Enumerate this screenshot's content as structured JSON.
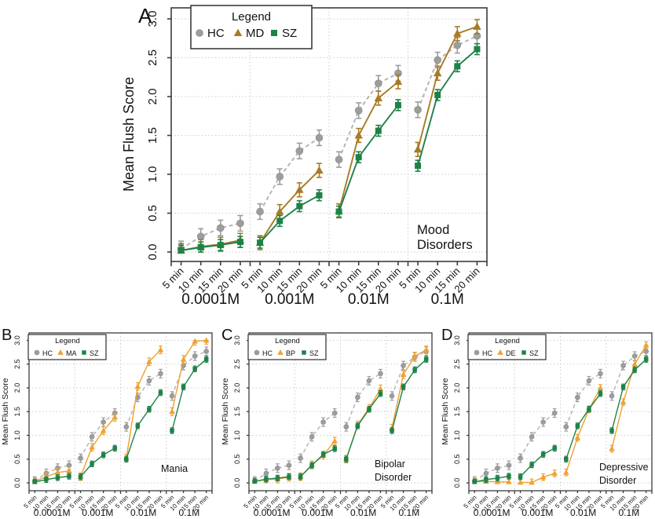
{
  "figure": {
    "y_axis_label": "Mean Flush Score",
    "legend_title": "Legend",
    "time_labels": [
      "5 min",
      "10 min",
      "15 min",
      "20 min"
    ],
    "concentrations": [
      "0.0001M",
      "0.001M",
      "0.01M",
      "0.1M"
    ],
    "y_tick_labels": [
      "0.0",
      "0.5",
      "1.0",
      "1.5",
      "2.0",
      "2.5",
      "3.0"
    ]
  },
  "colors": {
    "hc_gray": "#9d9d9d",
    "hc_line": "#b2b2b2",
    "mood_brown": "#a87b25",
    "orange": "#efa131",
    "sz_green": "#1e8248",
    "grid": "#cccccc",
    "box": "#3c3c3c",
    "text": "#111111"
  },
  "chart_data": [
    {
      "panel": "A",
      "type": "line",
      "ylabel": "Mean Flush Score",
      "ylim": [
        0,
        3
      ],
      "yticks": [
        0.0,
        0.5,
        1.0,
        1.5,
        2.0,
        2.5,
        3.0
      ],
      "grid": "dotted",
      "legend_title": "Legend",
      "legend_position": "top-left",
      "x_groups": [
        "0.0001M",
        "0.001M",
        "0.01M",
        "0.1M"
      ],
      "x_within_group": [
        "5 min",
        "10 min",
        "15 min",
        "20 min"
      ],
      "annotation": {
        "lines": [
          "Mood",
          "Disorders"
        ],
        "color": "#a87b25"
      },
      "series": [
        {
          "name": "HC",
          "marker": "circle",
          "color": "#9d9d9d",
          "line_color": "#b2b2b2",
          "dashed": true,
          "err": 0.1,
          "values": [
            0.04,
            0.2,
            0.31,
            0.37,
            0.52,
            0.97,
            1.3,
            1.47,
            1.19,
            1.82,
            2.17,
            2.3,
            1.83,
            2.47,
            2.66,
            2.78
          ]
        },
        {
          "name": "MD",
          "marker": "triangle",
          "color": "#a87b25",
          "line_color": "#a87b25",
          "dashed": false,
          "err": 0.09,
          "values": [
            0.02,
            0.07,
            0.1,
            0.15,
            0.12,
            0.52,
            0.8,
            1.05,
            0.53,
            1.5,
            1.98,
            2.19,
            1.32,
            2.3,
            2.81,
            2.9
          ]
        },
        {
          "name": "SZ",
          "marker": "square",
          "color": "#1e8248",
          "line_color": "#1e8248",
          "dashed": false,
          "err": 0.07,
          "values": [
            0.02,
            0.06,
            0.09,
            0.13,
            0.12,
            0.4,
            0.59,
            0.73,
            0.52,
            1.22,
            1.56,
            1.89,
            1.11,
            2.02,
            2.39,
            2.61
          ]
        }
      ]
    },
    {
      "panel": "B",
      "type": "line",
      "ylabel": "Mean Flush Score",
      "ylim": [
        0,
        3
      ],
      "yticks": [
        0.0,
        0.5,
        1.0,
        1.5,
        2.0,
        2.5,
        3.0
      ],
      "grid": "dotted",
      "legend_title": "Legend",
      "legend_position": "top-left",
      "x_groups": [
        "0.0001M",
        "0.001M",
        "0.01M",
        "0.1M"
      ],
      "x_within_group": [
        "5 min",
        "10 min",
        "15 min",
        "20 min"
      ],
      "annotation": {
        "lines": [
          "Mania"
        ],
        "color": "#efa131"
      },
      "series": [
        {
          "name": "HC",
          "marker": "circle",
          "color": "#9d9d9d",
          "line_color": "#b2b2b2",
          "dashed": true,
          "err": 0.09,
          "values": [
            0.04,
            0.2,
            0.31,
            0.37,
            0.52,
            0.97,
            1.28,
            1.47,
            1.18,
            1.8,
            2.15,
            2.3,
            1.83,
            2.47,
            2.67,
            2.77
          ]
        },
        {
          "name": "MA",
          "marker": "triangle",
          "color": "#efa131",
          "line_color": "#efa131",
          "dashed": false,
          "err": 0.08,
          "values": [
            0.03,
            0.13,
            0.22,
            0.25,
            0.13,
            0.75,
            1.1,
            1.38,
            0.52,
            2.03,
            2.55,
            2.8,
            1.5,
            2.6,
            2.98,
            3.0
          ]
        },
        {
          "name": "SZ",
          "marker": "square",
          "color": "#1e8248",
          "line_color": "#1e8248",
          "dashed": false,
          "err": 0.06,
          "values": [
            0.02,
            0.07,
            0.11,
            0.14,
            0.13,
            0.4,
            0.59,
            0.73,
            0.5,
            1.2,
            1.55,
            1.9,
            1.1,
            2.02,
            2.4,
            2.6
          ]
        }
      ]
    },
    {
      "panel": "C",
      "type": "line",
      "ylabel": "Mean Flush Score",
      "ylim": [
        0,
        3
      ],
      "yticks": [
        0.0,
        0.5,
        1.0,
        1.5,
        2.0,
        2.5,
        3.0
      ],
      "grid": "dotted",
      "legend_title": "Legend",
      "legend_position": "top-left",
      "x_groups": [
        "0.0001M",
        "0.001M",
        "0.01M",
        "0.1M"
      ],
      "x_within_group": [
        "5 min",
        "10 min",
        "15 min",
        "20 min"
      ],
      "annotation": {
        "lines": [
          "Bipolar",
          "Disorder"
        ],
        "color": "#efa131"
      },
      "series": [
        {
          "name": "HC",
          "marker": "circle",
          "color": "#9d9d9d",
          "line_color": "#b2b2b2",
          "dashed": true,
          "err": 0.09,
          "values": [
            0.04,
            0.2,
            0.31,
            0.37,
            0.52,
            0.97,
            1.28,
            1.47,
            1.18,
            1.8,
            2.15,
            2.3,
            1.83,
            2.47,
            2.65,
            2.77
          ]
        },
        {
          "name": "BP",
          "marker": "triangle",
          "color": "#efa131",
          "line_color": "#efa131",
          "dashed": false,
          "err": 0.08,
          "values": [
            0.03,
            0.07,
            0.08,
            0.12,
            0.13,
            0.38,
            0.58,
            0.88,
            0.5,
            1.22,
            1.57,
            1.98,
            1.15,
            2.28,
            2.67,
            2.8
          ]
        },
        {
          "name": "SZ",
          "marker": "square",
          "color": "#1e8248",
          "line_color": "#1e8248",
          "dashed": false,
          "err": 0.06,
          "values": [
            0.03,
            0.08,
            0.1,
            0.13,
            0.13,
            0.37,
            0.6,
            0.72,
            0.5,
            1.2,
            1.55,
            1.88,
            1.1,
            2.02,
            2.38,
            2.6
          ]
        }
      ]
    },
    {
      "panel": "D",
      "type": "line",
      "ylabel": "Mean Flush Score",
      "ylim": [
        0,
        3
      ],
      "yticks": [
        0.0,
        0.5,
        1.0,
        1.5,
        2.0,
        2.5,
        3.0
      ],
      "grid": "dotted",
      "legend_title": "Legend",
      "legend_position": "top-left",
      "x_groups": [
        "0.0001M",
        "0.001M",
        "0.01M",
        "0.1M"
      ],
      "x_within_group": [
        "5 min",
        "10 min",
        "15 min",
        "20 min"
      ],
      "annotation": {
        "lines": [
          "Depressive",
          "Disorder"
        ],
        "color": "#efa131"
      },
      "series": [
        {
          "name": "HC",
          "marker": "circle",
          "color": "#9d9d9d",
          "line_color": "#b2b2b2",
          "dashed": true,
          "err": 0.09,
          "values": [
            0.04,
            0.2,
            0.31,
            0.37,
            0.52,
            0.97,
            1.28,
            1.47,
            1.18,
            1.8,
            2.15,
            2.3,
            1.83,
            2.47,
            2.67,
            2.77
          ]
        },
        {
          "name": "DE",
          "marker": "triangle",
          "color": "#efa131",
          "line_color": "#efa131",
          "dashed": false,
          "err": 0.07,
          "values": [
            0.03,
            0.03,
            0.02,
            0.02,
            0.01,
            0.01,
            0.12,
            0.2,
            0.22,
            0.95,
            1.55,
            2.0,
            0.72,
            1.7,
            2.5,
            2.9
          ]
        },
        {
          "name": "SZ",
          "marker": "square",
          "color": "#1e8248",
          "line_color": "#1e8248",
          "dashed": false,
          "err": 0.06,
          "values": [
            0.02,
            0.07,
            0.1,
            0.14,
            0.13,
            0.38,
            0.6,
            0.73,
            0.5,
            1.2,
            1.55,
            1.88,
            1.1,
            2.02,
            2.38,
            2.6
          ]
        }
      ]
    }
  ]
}
